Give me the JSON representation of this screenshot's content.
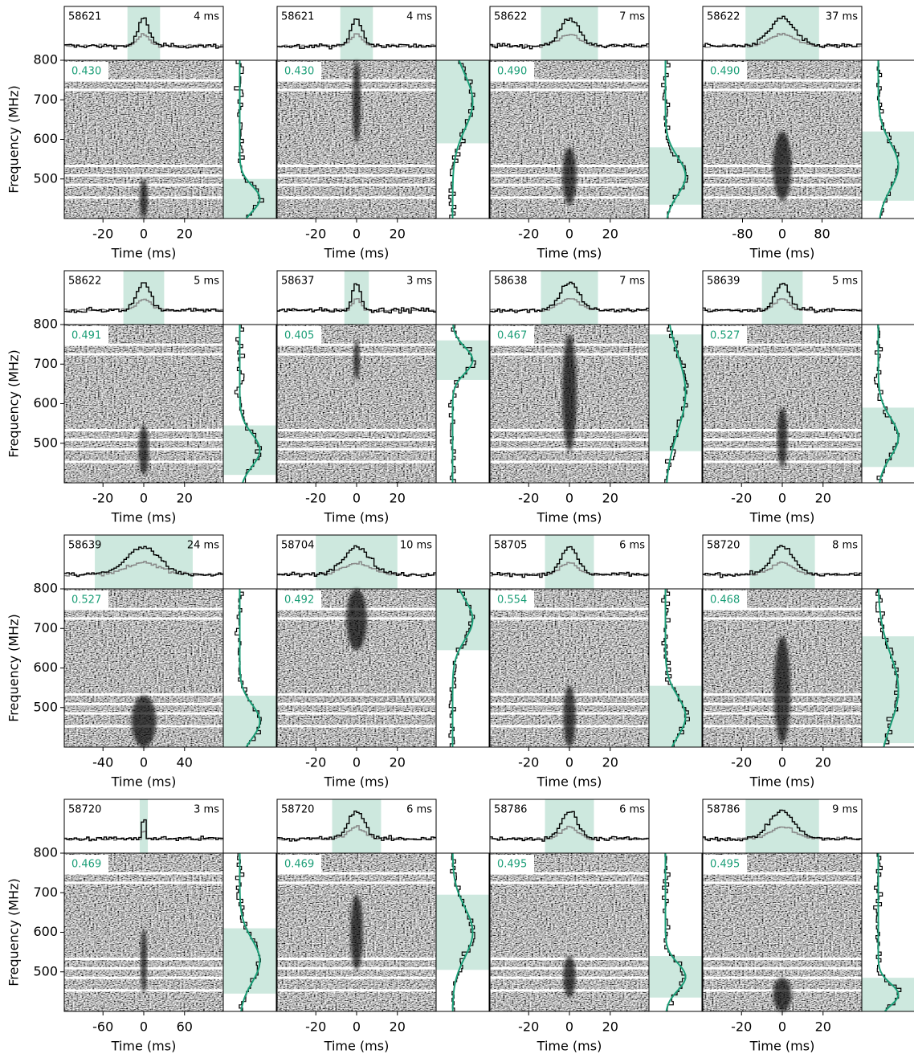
{
  "chart_data": [
    {
      "type": "waterfall",
      "mjd": "58621",
      "width": "4 ms",
      "annotation": "0.430",
      "xlim": [
        -39,
        39
      ],
      "xticks": [
        -20,
        0,
        20
      ],
      "ylim": [
        400,
        800
      ],
      "yticks": [
        500,
        600,
        700,
        800
      ],
      "window": [
        -8,
        8
      ],
      "band": [
        400,
        500
      ],
      "x_label": "Time (ms)",
      "y_label": "Frequency (MHz)",
      "shade_color": "#cde8de",
      "fit_color": "#1b9e77"
    },
    {
      "type": "waterfall",
      "mjd": "58621",
      "width": "4 ms",
      "annotation": "0.430",
      "xlim": [
        -39,
        39
      ],
      "xticks": [
        -20,
        0,
        20
      ],
      "ylim": [
        400,
        800
      ],
      "window": [
        -8,
        8
      ],
      "band": [
        590,
        800
      ],
      "x_label": "Time (ms)",
      "shade_color": "#cde8de",
      "fit_color": "#1b9e77"
    },
    {
      "type": "waterfall",
      "mjd": "58622",
      "width": "7 ms",
      "annotation": "0.490",
      "xlim": [
        -39,
        39
      ],
      "xticks": [
        -20,
        0,
        20
      ],
      "ylim": [
        400,
        800
      ],
      "window": [
        -14,
        14
      ],
      "band": [
        435,
        580
      ],
      "x_label": "Time (ms)",
      "shade_color": "#cde8de",
      "fit_color": "#1b9e77"
    },
    {
      "type": "waterfall",
      "mjd": "58622",
      "width": "37 ms",
      "annotation": "0.490",
      "xlim": [
        -160,
        160
      ],
      "xticks": [
        -80,
        0,
        80
      ],
      "ylim": [
        400,
        800
      ],
      "window": [
        -74,
        74
      ],
      "band": [
        445,
        620
      ],
      "x_label": "Time (ms)",
      "shade_color": "#cde8de",
      "fit_color": "#1b9e77"
    },
    {
      "type": "waterfall",
      "mjd": "58622",
      "width": "5 ms",
      "annotation": "0.491",
      "xlim": [
        -39,
        39
      ],
      "xticks": [
        -20,
        0,
        20
      ],
      "ylim": [
        400,
        800
      ],
      "yticks": [
        500,
        600,
        700,
        800
      ],
      "window": [
        -10,
        10
      ],
      "band": [
        420,
        545
      ],
      "x_label": "Time (ms)",
      "y_label": "Frequency (MHz)",
      "shade_color": "#cde8de",
      "fit_color": "#1b9e77"
    },
    {
      "type": "waterfall",
      "mjd": "58637",
      "width": "3 ms",
      "annotation": "0.405",
      "xlim": [
        -39,
        39
      ],
      "xticks": [
        -20,
        0,
        20
      ],
      "ylim": [
        400,
        800
      ],
      "window": [
        -6,
        6
      ],
      "band": [
        660,
        760
      ],
      "x_label": "Time (ms)",
      "shade_color": "#cde8de",
      "fit_color": "#1b9e77"
    },
    {
      "type": "waterfall",
      "mjd": "58638",
      "width": "7 ms",
      "annotation": "0.467",
      "xlim": [
        -39,
        39
      ],
      "xticks": [
        -20,
        0,
        20
      ],
      "ylim": [
        400,
        800
      ],
      "window": [
        -14,
        14
      ],
      "band": [
        480,
        775
      ],
      "x_label": "Time (ms)",
      "shade_color": "#cde8de",
      "fit_color": "#1b9e77"
    },
    {
      "type": "waterfall",
      "mjd": "58639",
      "width": "5 ms",
      "annotation": "0.527",
      "xlim": [
        -39,
        39
      ],
      "xticks": [
        -20,
        0,
        20
      ],
      "ylim": [
        400,
        800
      ],
      "window": [
        -10,
        10
      ],
      "band": [
        440,
        590
      ],
      "x_label": "Time (ms)",
      "shade_color": "#cde8de",
      "fit_color": "#1b9e77"
    },
    {
      "type": "waterfall",
      "mjd": "58639",
      "width": "24 ms",
      "annotation": "0.527",
      "xlim": [
        -78,
        78
      ],
      "xticks": [
        -40,
        0,
        40
      ],
      "ylim": [
        400,
        800
      ],
      "yticks": [
        500,
        600,
        700,
        800
      ],
      "window": [
        -48,
        48
      ],
      "band": [
        400,
        530
      ],
      "x_label": "Time (ms)",
      "y_label": "Frequency (MHz)",
      "shade_color": "#cde8de",
      "fit_color": "#1b9e77"
    },
    {
      "type": "waterfall",
      "mjd": "58704",
      "width": "10 ms",
      "annotation": "0.492",
      "xlim": [
        -39,
        39
      ],
      "xticks": [
        -20,
        0,
        20
      ],
      "ylim": [
        400,
        800
      ],
      "window": [
        -20,
        20
      ],
      "band": [
        645,
        800
      ],
      "x_label": "Time (ms)",
      "shade_color": "#cde8de",
      "fit_color": "#1b9e77"
    },
    {
      "type": "waterfall",
      "mjd": "58705",
      "width": "6 ms",
      "annotation": "0.554",
      "xlim": [
        -39,
        39
      ],
      "xticks": [
        -20,
        0,
        20
      ],
      "ylim": [
        400,
        800
      ],
      "window": [
        -12,
        12
      ],
      "band": [
        400,
        555
      ],
      "x_label": "Time (ms)",
      "shade_color": "#cde8de",
      "fit_color": "#1b9e77"
    },
    {
      "type": "waterfall",
      "mjd": "58720",
      "width": "8 ms",
      "annotation": "0.468",
      "xlim": [
        -39,
        39
      ],
      "xticks": [
        -20,
        0,
        20
      ],
      "ylim": [
        400,
        800
      ],
      "window": [
        -16,
        16
      ],
      "band": [
        410,
        680
      ],
      "x_label": "Time (ms)",
      "shade_color": "#cde8de",
      "fit_color": "#1b9e77"
    },
    {
      "type": "waterfall",
      "mjd": "58720",
      "width": "3 ms",
      "annotation": "0.469",
      "xlim": [
        -117,
        117
      ],
      "xticks": [
        -60,
        0,
        60
      ],
      "ylim": [
        400,
        800
      ],
      "yticks": [
        500,
        600,
        700,
        800
      ],
      "window": [
        -6,
        6
      ],
      "band": [
        445,
        610
      ],
      "x_label": "Time (ms)",
      "y_label": "Frequency (MHz)",
      "shade_color": "#cde8de",
      "fit_color": "#1b9e77"
    },
    {
      "type": "waterfall",
      "mjd": "58720",
      "width": "6 ms",
      "annotation": "0.469",
      "xlim": [
        -39,
        39
      ],
      "xticks": [
        -20,
        0,
        20
      ],
      "ylim": [
        400,
        800
      ],
      "window": [
        -12,
        12
      ],
      "band": [
        505,
        695
      ],
      "x_label": "Time (ms)",
      "shade_color": "#cde8de",
      "fit_color": "#1b9e77"
    },
    {
      "type": "waterfall",
      "mjd": "58786",
      "width": "6 ms",
      "annotation": "0.495",
      "xlim": [
        -39,
        39
      ],
      "xticks": [
        -20,
        0,
        20
      ],
      "ylim": [
        400,
        800
      ],
      "window": [
        -12,
        12
      ],
      "band": [
        435,
        540
      ],
      "x_label": "Time (ms)",
      "shade_color": "#cde8de",
      "fit_color": "#1b9e77"
    },
    {
      "type": "waterfall",
      "mjd": "58786",
      "width": "9 ms",
      "annotation": "0.495",
      "xlim": [
        -39,
        39
      ],
      "xticks": [
        -20,
        0,
        20
      ],
      "ylim": [
        400,
        800
      ],
      "window": [
        -18,
        18
      ],
      "band": [
        400,
        485
      ],
      "x_label": "Time (ms)",
      "shade_color": "#cde8de",
      "fit_color": "#1b9e77"
    }
  ]
}
